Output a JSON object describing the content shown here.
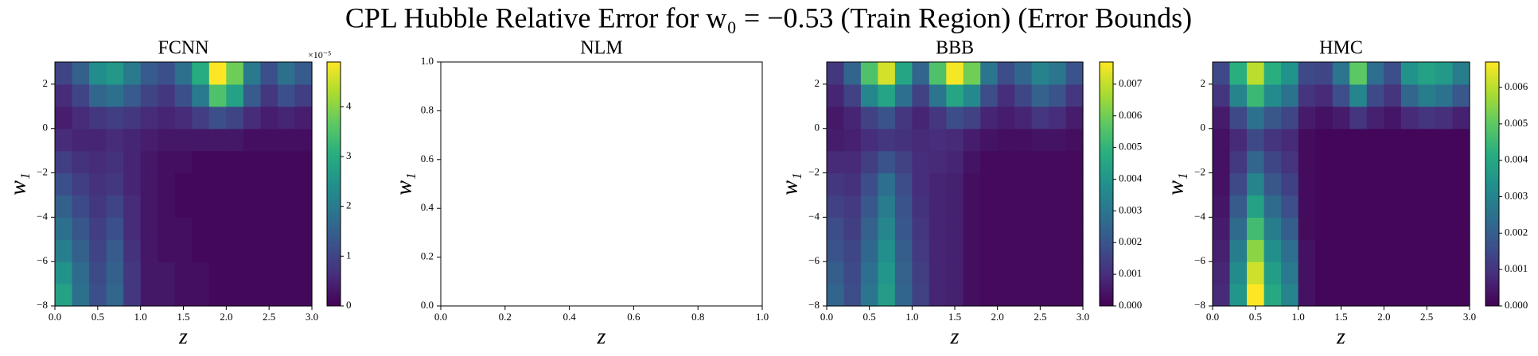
{
  "title": "CPL Hubble Relative Error for w₀ = −0.53 (Train Region) (Error Bounds)",
  "chart_data": [
    {
      "type": "heatmap",
      "title": "FCNN",
      "xlabel": "z",
      "ylabel": "w₁",
      "colormap": "viridis",
      "x": [
        0,
        0.2,
        0.4,
        0.6,
        0.8,
        1,
        1.2,
        1.4,
        1.6,
        1.8,
        2,
        2.2,
        2.4,
        2.6,
        2.8,
        3
      ],
      "y": [
        -8,
        -7,
        -6,
        -5,
        -4,
        -3,
        -2,
        -1,
        0,
        1,
        2,
        3
      ],
      "values": [
        [
          2.8,
          1.8,
          1.2,
          1.6,
          0.8,
          0.3,
          0.3,
          0.2,
          0.2,
          0.1,
          0.1,
          0.1,
          0.1,
          0.1,
          0.1
        ],
        [
          2.5,
          1.7,
          1.1,
          1.5,
          0.8,
          0.3,
          0.3,
          0.2,
          0.2,
          0.1,
          0.1,
          0.1,
          0.1,
          0.1,
          0.1
        ],
        [
          2.1,
          1.5,
          1.0,
          1.4,
          0.7,
          0.3,
          0.2,
          0.2,
          0.1,
          0.1,
          0.1,
          0.1,
          0.1,
          0.1,
          0.1
        ],
        [
          1.8,
          1.3,
          0.9,
          1.2,
          0.6,
          0.3,
          0.2,
          0.2,
          0.1,
          0.1,
          0.1,
          0.1,
          0.1,
          0.1,
          0.1
        ],
        [
          1.5,
          1.1,
          0.8,
          1.0,
          0.6,
          0.3,
          0.2,
          0.1,
          0.1,
          0.1,
          0.1,
          0.1,
          0.1,
          0.1,
          0.1
        ],
        [
          1.2,
          0.9,
          0.7,
          0.8,
          0.5,
          0.3,
          0.2,
          0.1,
          0.1,
          0.1,
          0.1,
          0.1,
          0.1,
          0.1,
          0.1
        ],
        [
          0.9,
          0.7,
          0.6,
          0.7,
          0.5,
          0.3,
          0.2,
          0.2,
          0.1,
          0.1,
          0.1,
          0.1,
          0.1,
          0.1,
          0.1
        ],
        [
          0.6,
          0.5,
          0.5,
          0.6,
          0.5,
          0.4,
          0.3,
          0.3,
          0.3,
          0.3,
          0.3,
          0.2,
          0.2,
          0.2,
          0.2
        ],
        [
          0.4,
          0.6,
          0.8,
          0.9,
          0.8,
          0.6,
          0.5,
          0.6,
          0.9,
          1.2,
          1.0,
          0.6,
          0.4,
          0.5,
          0.4
        ],
        [
          0.6,
          1.0,
          1.6,
          1.8,
          1.4,
          1.0,
          0.8,
          1.2,
          2.0,
          3.5,
          2.8,
          1.4,
          0.8,
          1.2,
          0.9
        ],
        [
          1.0,
          1.5,
          2.4,
          2.6,
          2.0,
          1.4,
          1.2,
          1.8,
          3.0,
          4.9,
          3.8,
          2.0,
          1.2,
          1.8,
          1.4
        ]
      ],
      "xlim": [
        0,
        3
      ],
      "ylim": [
        -8,
        3
      ],
      "xticks": [
        {
          "value": 0,
          "label": "0.0"
        },
        0.5,
        {
          "value": 1,
          "label": "1.0"
        },
        1.5,
        {
          "value": 2,
          "label": "2.0"
        },
        2.5,
        {
          "value": 3,
          "label": "3.0"
        }
      ],
      "yticks": [
        {
          "value": -8,
          "label": "−8"
        },
        {
          "value": -6,
          "label": "−6"
        },
        {
          "value": -4,
          "label": "−4"
        },
        {
          "value": -2,
          "label": "−2"
        },
        0,
        2
      ],
      "zlim": [
        0,
        4.9
      ],
      "zticks": [
        0,
        1,
        2,
        3,
        4
      ],
      "colorbar_offset": "×10⁻⁵"
    },
    {
      "type": "heatmap",
      "title": "NLM",
      "xlabel": "z",
      "ylabel": "w₁",
      "xlim": [
        0,
        1
      ],
      "ylim": [
        0,
        1
      ],
      "xticks": [
        {
          "value": 0,
          "label": "0.0"
        },
        0.2,
        0.4,
        0.6,
        0.8,
        {
          "value": 1,
          "label": "1.0"
        }
      ],
      "yticks": [
        {
          "value": 0,
          "label": "0.0"
        },
        0.2,
        0.4,
        0.6,
        0.8,
        {
          "value": 1,
          "label": "1.0"
        }
      ]
    },
    {
      "type": "heatmap",
      "title": "BBB",
      "xlabel": "z",
      "ylabel": "w₁",
      "colormap": "viridis",
      "x": [
        0,
        0.2,
        0.4,
        0.6,
        0.8,
        1,
        1.2,
        1.4,
        1.6,
        1.8,
        2,
        2.2,
        2.4,
        2.6,
        2.8,
        3
      ],
      "y": [
        -8,
        -7,
        -6,
        -5,
        -4,
        -3,
        -2,
        -1,
        0,
        1,
        2,
        3
      ],
      "values": [
        [
          0.0025,
          0.0018,
          0.003,
          0.0042,
          0.0025,
          0.0015,
          0.0008,
          0.0007,
          0.0003,
          0.0002,
          0.0002,
          0.0002,
          0.0002,
          0.0002,
          0.0002
        ],
        [
          0.0023,
          0.0017,
          0.0028,
          0.004,
          0.0024,
          0.0014,
          0.0008,
          0.0007,
          0.0003,
          0.0002,
          0.0002,
          0.0002,
          0.0002,
          0.0002,
          0.0002
        ],
        [
          0.002,
          0.0016,
          0.0026,
          0.0038,
          0.0023,
          0.0013,
          0.0008,
          0.0007,
          0.0003,
          0.0002,
          0.0002,
          0.0002,
          0.0002,
          0.0002,
          0.0002
        ],
        [
          0.0018,
          0.0014,
          0.0024,
          0.0035,
          0.0021,
          0.0012,
          0.0008,
          0.0007,
          0.0003,
          0.0002,
          0.0002,
          0.0002,
          0.0002,
          0.0002,
          0.0002
        ],
        [
          0.0015,
          0.0013,
          0.0021,
          0.0032,
          0.002,
          0.0011,
          0.0008,
          0.0007,
          0.0003,
          0.0002,
          0.0002,
          0.0002,
          0.0002,
          0.0002,
          0.0002
        ],
        [
          0.0012,
          0.0011,
          0.0018,
          0.0028,
          0.0018,
          0.001,
          0.0008,
          0.0007,
          0.0003,
          0.0002,
          0.0002,
          0.0002,
          0.0002,
          0.0002,
          0.0002
        ],
        [
          0.0009,
          0.0009,
          0.0014,
          0.002,
          0.0015,
          0.001,
          0.0009,
          0.0008,
          0.0004,
          0.0002,
          0.0002,
          0.0002,
          0.0002,
          0.0002,
          0.0002
        ],
        [
          0.0006,
          0.0007,
          0.001,
          0.0012,
          0.0011,
          0.0009,
          0.001,
          0.0009,
          0.0006,
          0.0004,
          0.0003,
          0.0003,
          0.0004,
          0.0004,
          0.0003
        ],
        [
          0.0005,
          0.0008,
          0.0015,
          0.002,
          0.0012,
          0.0008,
          0.0012,
          0.0018,
          0.0015,
          0.0008,
          0.0006,
          0.0008,
          0.0012,
          0.001,
          0.0006
        ],
        [
          0.0008,
          0.0015,
          0.0035,
          0.0045,
          0.0028,
          0.0015,
          0.003,
          0.0045,
          0.0036,
          0.0018,
          0.001,
          0.0016,
          0.0024,
          0.002,
          0.0012
        ],
        [
          0.0012,
          0.0025,
          0.0055,
          0.0072,
          0.0045,
          0.0025,
          0.0055,
          0.0076,
          0.006,
          0.003,
          0.0018,
          0.0025,
          0.0034,
          0.003,
          0.002
        ]
      ],
      "xlim": [
        0,
        3
      ],
      "ylim": [
        -8,
        3
      ],
      "xticks": [
        {
          "value": 0,
          "label": "0.0"
        },
        0.5,
        {
          "value": 1,
          "label": "1.0"
        },
        1.5,
        {
          "value": 2,
          "label": "2.0"
        },
        2.5,
        {
          "value": 3,
          "label": "3.0"
        }
      ],
      "yticks": [
        {
          "value": -8,
          "label": "−8"
        },
        {
          "value": -6,
          "label": "−6"
        },
        {
          "value": -4,
          "label": "−4"
        },
        {
          "value": -2,
          "label": "−2"
        },
        0,
        2
      ],
      "zlim": [
        0,
        0.0077
      ],
      "zticks": [
        {
          "value": 0,
          "label": "0.000"
        },
        0.001,
        0.002,
        0.003,
        0.004,
        0.005,
        0.006,
        0.007
      ]
    },
    {
      "type": "heatmap",
      "title": "HMC",
      "xlabel": "z",
      "ylabel": "w₁",
      "colormap": "viridis",
      "x": [
        0,
        0.2,
        0.4,
        0.6,
        0.8,
        1,
        1.2,
        1.4,
        1.6,
        1.8,
        2,
        2.2,
        2.4,
        2.6,
        2.8,
        3
      ],
      "y": [
        -8,
        -7,
        -6,
        -5,
        -4,
        -3,
        -2,
        -1,
        0,
        1,
        2,
        3
      ],
      "values": [
        [
          0.0008,
          0.0035,
          0.0067,
          0.004,
          0.003,
          0.0003,
          0.0001,
          0.0001,
          0.0001,
          0.0001,
          0.0001,
          0.0001,
          0.0001,
          0.0001,
          0.0001
        ],
        [
          0.0007,
          0.0032,
          0.0062,
          0.0037,
          0.0027,
          0.0003,
          0.0001,
          0.0001,
          0.0001,
          0.0001,
          0.0001,
          0.0001,
          0.0001,
          0.0001,
          0.0001
        ],
        [
          0.0006,
          0.0028,
          0.0055,
          0.0033,
          0.0024,
          0.0003,
          0.0001,
          0.0001,
          0.0001,
          0.0001,
          0.0001,
          0.0001,
          0.0001,
          0.0001,
          0.0001
        ],
        [
          0.0005,
          0.0023,
          0.0046,
          0.0028,
          0.002,
          0.0002,
          0.0001,
          0.0001,
          0.0001,
          0.0001,
          0.0001,
          0.0001,
          0.0001,
          0.0001,
          0.0001
        ],
        [
          0.0004,
          0.0019,
          0.0038,
          0.0023,
          0.0016,
          0.0002,
          0.0001,
          0.0001,
          0.0001,
          0.0001,
          0.0001,
          0.0001,
          0.0001,
          0.0001,
          0.0001
        ],
        [
          0.0003,
          0.0015,
          0.003,
          0.0018,
          0.0013,
          0.0002,
          0.0001,
          0.0001,
          0.0001,
          0.0001,
          0.0001,
          0.0001,
          0.0001,
          0.0001,
          0.0001
        ],
        [
          0.0003,
          0.0011,
          0.0022,
          0.0014,
          0.001,
          0.0002,
          0.0001,
          0.0001,
          0.0001,
          0.0001,
          0.0001,
          0.0001,
          0.0001,
          0.0001,
          0.0001
        ],
        [
          0.0003,
          0.0008,
          0.0015,
          0.001,
          0.0008,
          0.0002,
          0.0001,
          0.0001,
          0.0001,
          0.0001,
          0.0001,
          0.0001,
          0.0001,
          0.0001,
          0.0001
        ],
        [
          0.0005,
          0.0015,
          0.0025,
          0.0018,
          0.0014,
          0.0005,
          0.0003,
          0.0005,
          0.001,
          0.0006,
          0.0004,
          0.0008,
          0.001,
          0.0009,
          0.0006
        ],
        [
          0.001,
          0.003,
          0.0045,
          0.0032,
          0.0025,
          0.001,
          0.0008,
          0.0016,
          0.003,
          0.0015,
          0.001,
          0.0022,
          0.0028,
          0.0025,
          0.0018
        ],
        [
          0.0015,
          0.0042,
          0.006,
          0.0042,
          0.0034,
          0.0015,
          0.0014,
          0.0026,
          0.005,
          0.0024,
          0.0016,
          0.0034,
          0.0038,
          0.0036,
          0.0028
        ]
      ],
      "xlim": [
        0,
        3
      ],
      "ylim": [
        -8,
        3
      ],
      "xticks": [
        {
          "value": 0,
          "label": "0.0"
        },
        0.5,
        {
          "value": 1,
          "label": "1.0"
        },
        1.5,
        {
          "value": 2,
          "label": "2.0"
        },
        2.5,
        {
          "value": 3,
          "label": "3.0"
        }
      ],
      "yticks": [
        {
          "value": -8,
          "label": "−8"
        },
        {
          "value": -6,
          "label": "−6"
        },
        {
          "value": -4,
          "label": "−4"
        },
        {
          "value": -2,
          "label": "−2"
        },
        0,
        2
      ],
      "zlim": [
        0,
        0.0067
      ],
      "zticks": [
        {
          "value": 0,
          "label": "0.000"
        },
        0.001,
        0.002,
        0.003,
        0.004,
        0.005,
        0.006
      ]
    }
  ]
}
